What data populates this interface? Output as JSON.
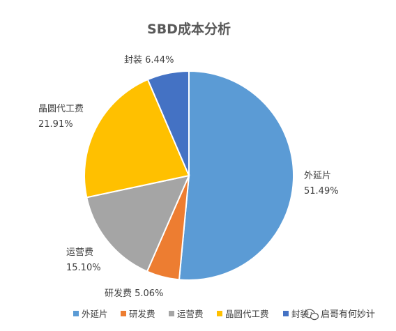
{
  "chart_data": {
    "type": "pie",
    "title": "SBD成本分析",
    "categories": [
      "外延片",
      "研发费",
      "运营费",
      "晶圆代工费",
      "封装"
    ],
    "values": [
      51.49,
      5.06,
      15.1,
      21.91,
      6.44
    ],
    "value_labels": [
      "51.49%",
      "5.06%",
      "15.10%",
      "21.91%",
      "6.44%"
    ],
    "colors": [
      "#5B9BD5",
      "#ED7D31",
      "#A5A5A5",
      "#FFC000",
      "#4472C4"
    ],
    "legend_position": "bottom"
  },
  "watermark": {
    "text": "启哥有何妙计",
    "icon": "wechat-icon"
  }
}
